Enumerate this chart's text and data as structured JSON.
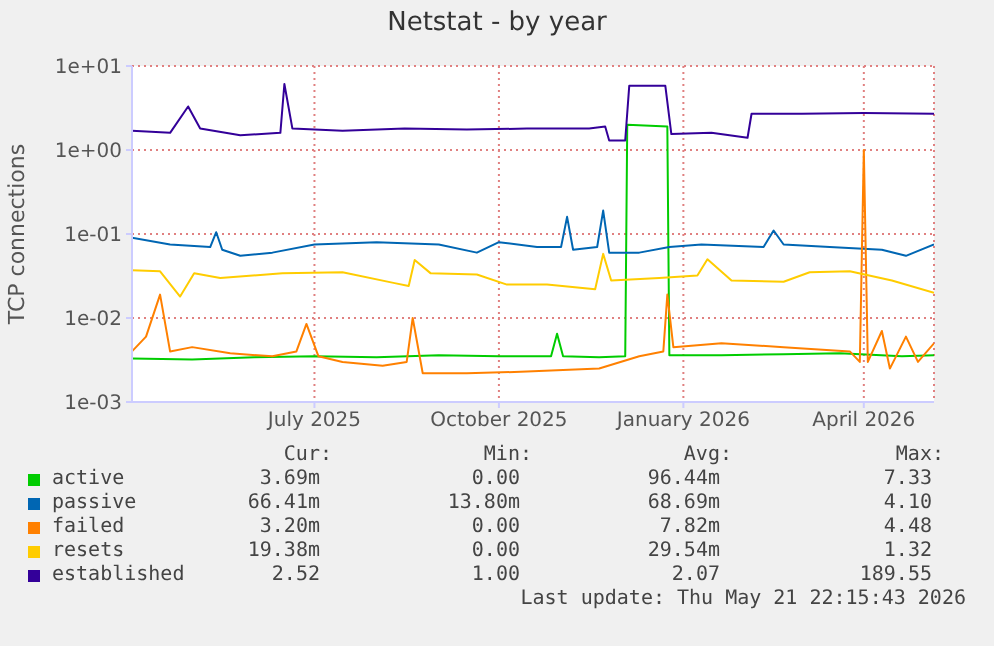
{
  "chart_data": {
    "type": "line",
    "title": "Netstat - by year",
    "ylabel": "TCP connections",
    "log": "y",
    "grid": true,
    "legend": "bottom",
    "marker": "none",
    "line_style": "solid",
    "xlim": [
      "2025-04-01",
      "2026-05-06"
    ],
    "xticks": [
      {
        "value": "2025-07-01",
        "label": "July 2025"
      },
      {
        "value": "2025-10-01",
        "label": "October 2025"
      },
      {
        "value": "2026-01-01",
        "label": "January 2026"
      },
      {
        "value": "2026-04-01",
        "label": "April 2026"
      }
    ],
    "ylim": [
      0.001,
      10
    ],
    "yticks": [
      {
        "value": 0.001,
        "label": "1e-03"
      },
      {
        "value": 0.01,
        "label": "1e-02"
      },
      {
        "value": 0.1,
        "label": "1e-01"
      },
      {
        "value": 1,
        "label": "1e+00"
      },
      {
        "value": 10,
        "label": "1e+01"
      }
    ],
    "series": [
      {
        "name": "active",
        "color": "#00cc00",
        "x": [
          "2025-04-01",
          "2025-05-01",
          "2025-06-01",
          "2025-07-01",
          "2025-08-01",
          "2025-09-01",
          "2025-10-01",
          "2025-10-27",
          "2025-10-30",
          "2025-11-02",
          "2025-11-20",
          "2025-12-03",
          "2025-12-04",
          "2025-12-24",
          "2025-12-25",
          "2026-01-20",
          "2026-02-20",
          "2026-03-20",
          "2026-04-20",
          "2026-05-06"
        ],
        "values": [
          0.0033,
          0.0032,
          0.0034,
          0.0035,
          0.0034,
          0.0036,
          0.0035,
          0.0035,
          0.0065,
          0.0035,
          0.0034,
          0.0035,
          2.0,
          1.9,
          0.0036,
          0.0036,
          0.0037,
          0.0038,
          0.0035,
          0.0036
        ]
      },
      {
        "name": "passive",
        "color": "#0066b3",
        "x": [
          "2025-04-01",
          "2025-04-20",
          "2025-05-10",
          "2025-05-13",
          "2025-05-16",
          "2025-05-25",
          "2025-06-10",
          "2025-07-01",
          "2025-08-01",
          "2025-09-01",
          "2025-09-20",
          "2025-10-01",
          "2025-10-20",
          "2025-11-01",
          "2025-11-04",
          "2025-11-07",
          "2025-11-19",
          "2025-11-22",
          "2025-11-25",
          "2025-12-10",
          "2025-12-25",
          "2026-01-10",
          "2026-02-10",
          "2026-02-15",
          "2026-02-20",
          "2026-03-15",
          "2026-04-10",
          "2026-04-22",
          "2026-05-06"
        ],
        "values": [
          0.09,
          0.075,
          0.07,
          0.105,
          0.065,
          0.055,
          0.06,
          0.075,
          0.08,
          0.075,
          0.06,
          0.08,
          0.07,
          0.07,
          0.16,
          0.065,
          0.07,
          0.19,
          0.06,
          0.06,
          0.07,
          0.075,
          0.07,
          0.11,
          0.075,
          0.07,
          0.065,
          0.055,
          0.075
        ]
      },
      {
        "name": "failed",
        "color": "#ff8000",
        "x": [
          "2025-04-01",
          "2025-04-08",
          "2025-04-15",
          "2025-04-20",
          "2025-05-01",
          "2025-05-20",
          "2025-06-10",
          "2025-06-22",
          "2025-06-27",
          "2025-07-03",
          "2025-07-15",
          "2025-08-04",
          "2025-08-16",
          "2025-08-19",
          "2025-08-24",
          "2025-09-15",
          "2025-10-15",
          "2025-11-20",
          "2025-12-10",
          "2025-12-22",
          "2025-12-24",
          "2025-12-27",
          "2026-01-20",
          "2026-02-20",
          "2026-03-25",
          "2026-03-30",
          "2026-04-01",
          "2026-04-03",
          "2026-04-10",
          "2026-04-14",
          "2026-04-22",
          "2026-04-28",
          "2026-05-06"
        ],
        "values": [
          0.004,
          0.006,
          0.019,
          0.004,
          0.0045,
          0.0038,
          0.0035,
          0.004,
          0.0085,
          0.0035,
          0.003,
          0.0027,
          0.003,
          0.01,
          0.0022,
          0.0022,
          0.0023,
          0.0025,
          0.0035,
          0.004,
          0.019,
          0.0045,
          0.005,
          0.0045,
          0.004,
          0.003,
          1.0,
          0.003,
          0.007,
          0.0025,
          0.006,
          0.003,
          0.005
        ]
      },
      {
        "name": "resets",
        "color": "#ffcc00",
        "x": [
          "2025-04-01",
          "2025-04-15",
          "2025-04-25",
          "2025-05-02",
          "2025-05-15",
          "2025-06-15",
          "2025-07-15",
          "2025-08-10",
          "2025-08-17",
          "2025-08-20",
          "2025-08-28",
          "2025-09-20",
          "2025-10-05",
          "2025-10-25",
          "2025-11-18",
          "2025-11-22",
          "2025-11-26",
          "2025-12-20",
          "2026-01-08",
          "2026-01-13",
          "2026-01-25",
          "2026-02-20",
          "2026-03-05",
          "2026-03-25",
          "2026-04-15",
          "2026-05-06"
        ],
        "values": [
          0.037,
          0.036,
          0.018,
          0.034,
          0.03,
          0.034,
          0.035,
          0.026,
          0.024,
          0.049,
          0.034,
          0.033,
          0.025,
          0.025,
          0.022,
          0.058,
          0.028,
          0.03,
          0.032,
          0.05,
          0.028,
          0.027,
          0.035,
          0.036,
          0.028,
          0.02
        ]
      },
      {
        "name": "established",
        "color": "#330099",
        "x": [
          "2025-04-01",
          "2025-04-20",
          "2025-04-29",
          "2025-05-05",
          "2025-05-25",
          "2025-06-14",
          "2025-06-16",
          "2025-06-20",
          "2025-07-15",
          "2025-08-15",
          "2025-09-15",
          "2025-10-15",
          "2025-11-15",
          "2025-11-23",
          "2025-11-25",
          "2025-12-03",
          "2025-12-05",
          "2025-12-23",
          "2025-12-26",
          "2026-01-15",
          "2026-02-02",
          "2026-02-04",
          "2026-03-01",
          "2026-04-01",
          "2026-05-06"
        ],
        "values": [
          1.7,
          1.6,
          3.3,
          1.8,
          1.5,
          1.6,
          6.1,
          1.8,
          1.7,
          1.8,
          1.75,
          1.8,
          1.8,
          1.9,
          1.3,
          1.3,
          5.8,
          5.8,
          1.55,
          1.6,
          1.4,
          2.7,
          2.7,
          2.75,
          2.7
        ]
      }
    ],
    "annotations": [
      "Cur:",
      "Min:",
      "Avg:",
      "Max:",
      "3.69m",
      "0.00",
      "96.44m",
      "7.33",
      "66.41m",
      "13.80m",
      "68.69m",
      "4.10",
      "3.20m",
      "0.00",
      "7.82m",
      "4.48",
      "19.38m",
      "0.00",
      "29.54m",
      "1.32",
      "2.52",
      "1.00",
      "2.07",
      "189.55",
      "Last update: Thu May 21 22:15:43 2026"
    ]
  }
}
